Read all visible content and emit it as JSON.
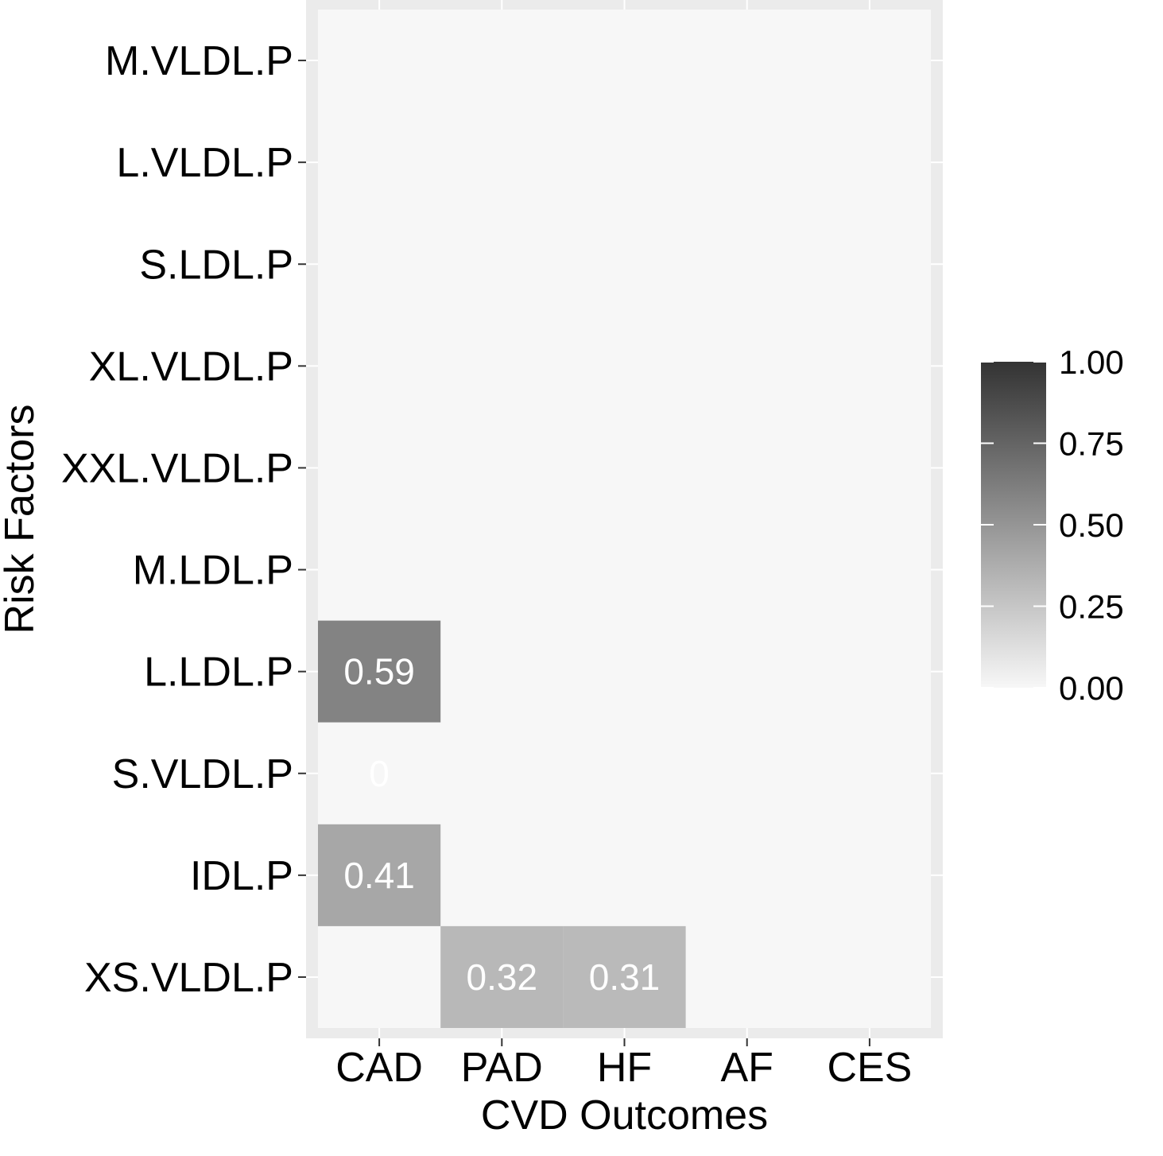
{
  "chart_data": {
    "type": "heatmap",
    "xlabel": "CVD Outcomes",
    "ylabel": "Risk Factors",
    "x_categories": [
      "CAD",
      "PAD",
      "HF",
      "AF",
      "CES"
    ],
    "y_categories": [
      "M.VLDL.P",
      "L.VLDL.P",
      "S.LDL.P",
      "XL.VLDL.P",
      "XXL.VLDL.P",
      "M.LDL.P",
      "L.LDL.P",
      "S.VLDL.P",
      "IDL.P",
      "XS.VLDL.P"
    ],
    "cells": [
      {
        "x": "CAD",
        "y": "L.LDL.P",
        "value": 0.59,
        "label": "0.59"
      },
      {
        "x": "CAD",
        "y": "S.VLDL.P",
        "value": 0,
        "label": "0"
      },
      {
        "x": "CAD",
        "y": "IDL.P",
        "value": 0.41,
        "label": "0.41"
      },
      {
        "x": "PAD",
        "y": "XS.VLDL.P",
        "value": 0.32,
        "label": "0.32"
      },
      {
        "x": "HF",
        "y": "XS.VLDL.P",
        "value": 0.31,
        "label": "0.31"
      }
    ],
    "legend": {
      "ticks": [
        "1.00",
        "0.75",
        "0.50",
        "0.25",
        "0.00"
      ],
      "tick_values": [
        1.0,
        0.75,
        0.5,
        0.25,
        0.0
      ],
      "range": [
        0,
        1
      ],
      "low_color": "#f7f7f7",
      "high_color": "#333333",
      "placement": "right"
    },
    "panel_background": "#ebebeb",
    "missing_fill": "#f7f7f7",
    "grid": true
  }
}
